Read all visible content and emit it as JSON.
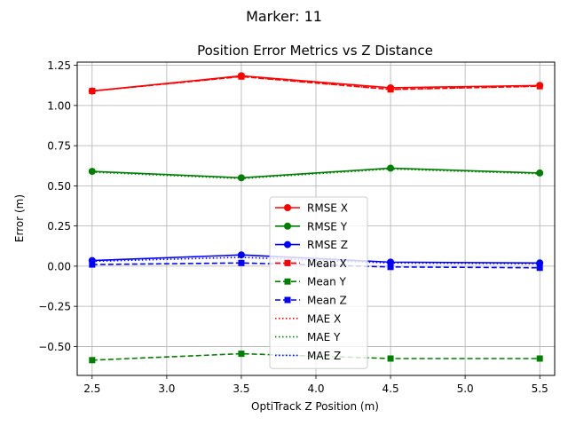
{
  "suptitle": "Marker: 11",
  "chart_data": {
    "type": "line",
    "title": "Position Error Metrics vs Z Distance",
    "xlabel": "OptiTrack Z Position (m)",
    "ylabel": "Error (m)",
    "xlim": [
      2.4,
      5.6
    ],
    "ylim": [
      -0.68,
      1.27
    ],
    "x": [
      2.5,
      3.5,
      4.5,
      5.5
    ],
    "xticks": [
      2.5,
      3.0,
      3.5,
      4.0,
      4.5,
      5.0,
      5.5
    ],
    "xtick_labels": [
      "2.5",
      "3.0",
      "3.5",
      "4.0",
      "4.5",
      "5.0",
      "5.5"
    ],
    "yticks": [
      -0.5,
      -0.25,
      0.0,
      0.25,
      0.5,
      0.75,
      1.0,
      1.25
    ],
    "ytick_labels": [
      "−0.50",
      "−0.25",
      "0.00",
      "0.25",
      "0.50",
      "0.75",
      "1.00",
      "1.25"
    ],
    "grid": true,
    "legend_position": "center-bottom",
    "series": [
      {
        "name": "RMSE X",
        "color": "#ff0000",
        "style": "solid",
        "marker": "circle",
        "values": [
          1.09,
          1.185,
          1.11,
          1.125
        ]
      },
      {
        "name": "RMSE Y",
        "color": "#008000",
        "style": "solid",
        "marker": "circle",
        "values": [
          0.59,
          0.55,
          0.61,
          0.58
        ]
      },
      {
        "name": "RMSE Z",
        "color": "#0000ff",
        "style": "solid",
        "marker": "circle",
        "values": [
          0.035,
          0.07,
          0.025,
          0.02
        ]
      },
      {
        "name": "Mean X",
        "color": "#ff0000",
        "style": "dashed",
        "marker": "square",
        "values": [
          1.09,
          1.18,
          1.1,
          1.12
        ]
      },
      {
        "name": "Mean Y",
        "color": "#008000",
        "style": "dashed",
        "marker": "square",
        "values": [
          -0.585,
          -0.545,
          -0.575,
          -0.575
        ]
      },
      {
        "name": "Mean Z",
        "color": "#0000ff",
        "style": "dashed",
        "marker": "square",
        "values": [
          0.01,
          0.02,
          -0.005,
          -0.01
        ]
      },
      {
        "name": "MAE X",
        "color": "#ff0000",
        "style": "dotted",
        "marker": "none",
        "values": [
          1.09,
          1.18,
          1.1,
          1.12
        ]
      },
      {
        "name": "MAE Y",
        "color": "#008000",
        "style": "dotted",
        "marker": "none",
        "values": [
          0.585,
          0.545,
          0.605,
          0.575
        ]
      },
      {
        "name": "MAE Z",
        "color": "#0000ff",
        "style": "dotted",
        "marker": "none",
        "values": [
          0.03,
          0.055,
          0.02,
          0.015
        ]
      }
    ]
  }
}
